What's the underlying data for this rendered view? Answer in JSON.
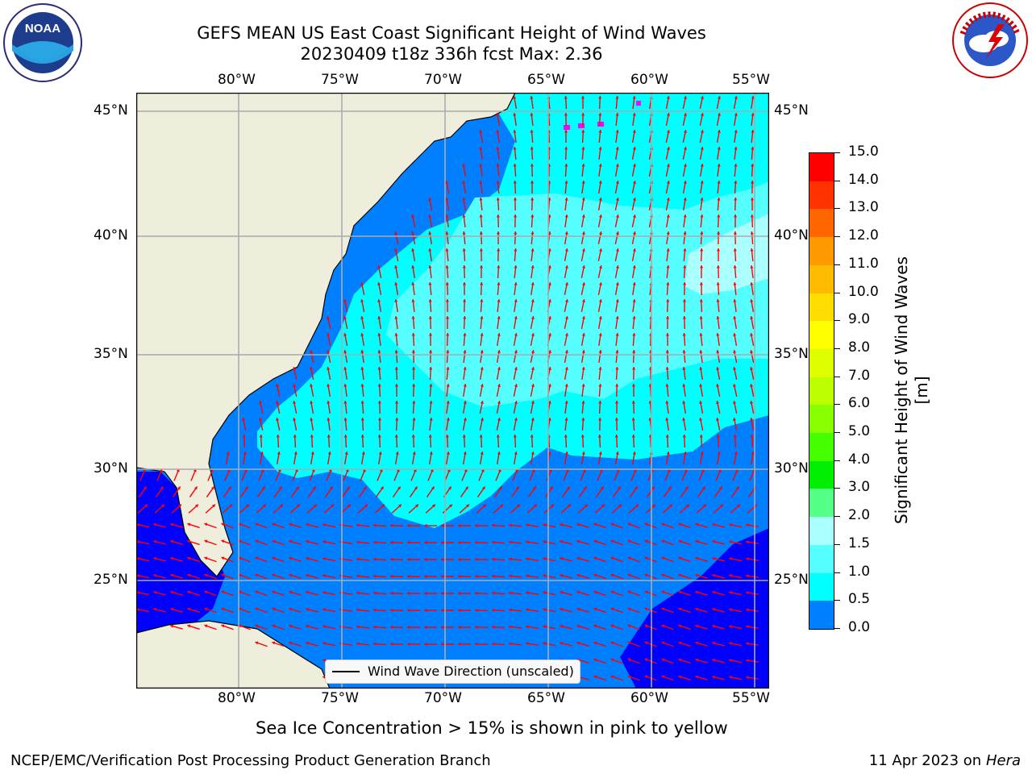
{
  "header": {
    "title_line1": "GEFS MEAN US East Coast Significant Height of Wind Waves",
    "title_line2": "20230409 t18z 336h fcst   Max: 2.36",
    "noaa_logo_text": "NOAA",
    "noaa_ring_text": "NATIONAL OCEANIC AND ATMOSPHERIC ADMINISTRATION · U.S. DEPARTMENT OF COMMERCE",
    "nws_ring_text": "NATIONAL WEATHER SERVICE"
  },
  "map": {
    "lon_labels": [
      "80°W",
      "75°W",
      "70°W",
      "65°W",
      "60°W",
      "55°W"
    ],
    "lat_labels": [
      "45°N",
      "40°N",
      "35°N",
      "30°N",
      "25°N"
    ],
    "legend_label": "Wind Wave Direction (unscaled)",
    "colors": {
      "land": "#efeddc",
      "ocean_0_05": "#0000ff",
      "ocean_05_1": "#0080ff",
      "ocean_1_15": "#00ffff",
      "ocean_15_2": "#55ffff",
      "ocean_2_3": "#aaffff",
      "arrows": "#ff0000",
      "sea_ice": "#ff00ff"
    }
  },
  "colorbar": {
    "label": "Significant Height of Wind Waves [m]",
    "ticks": [
      "15.0",
      "14.0",
      "13.0",
      "12.0",
      "11.0",
      "10.0",
      "9.0",
      "8.0",
      "7.0",
      "6.0",
      "5.0",
      "4.0",
      "3.0",
      "2.0",
      "1.5",
      "1.0",
      "0.5",
      "0.0"
    ],
    "colors": [
      "#ff0000",
      "#ff3300",
      "#ff6600",
      "#ff9900",
      "#ffbb00",
      "#ffdd00",
      "#ffff00",
      "#ddff00",
      "#bbff00",
      "#88ff00",
      "#44ff00",
      "#00ee00",
      "#55ff88",
      "#aaffff",
      "#55ffff",
      "#00ffff",
      "#0080ff",
      "#0000ff"
    ]
  },
  "footer": {
    "caption": "Sea Ice Concentration > 15% is shown in pink to yellow",
    "left": "NCEP/EMC/Verification Post Processing Product Generation Branch",
    "right_date": "11 Apr 2023 on ",
    "right_machine": "Hera"
  }
}
